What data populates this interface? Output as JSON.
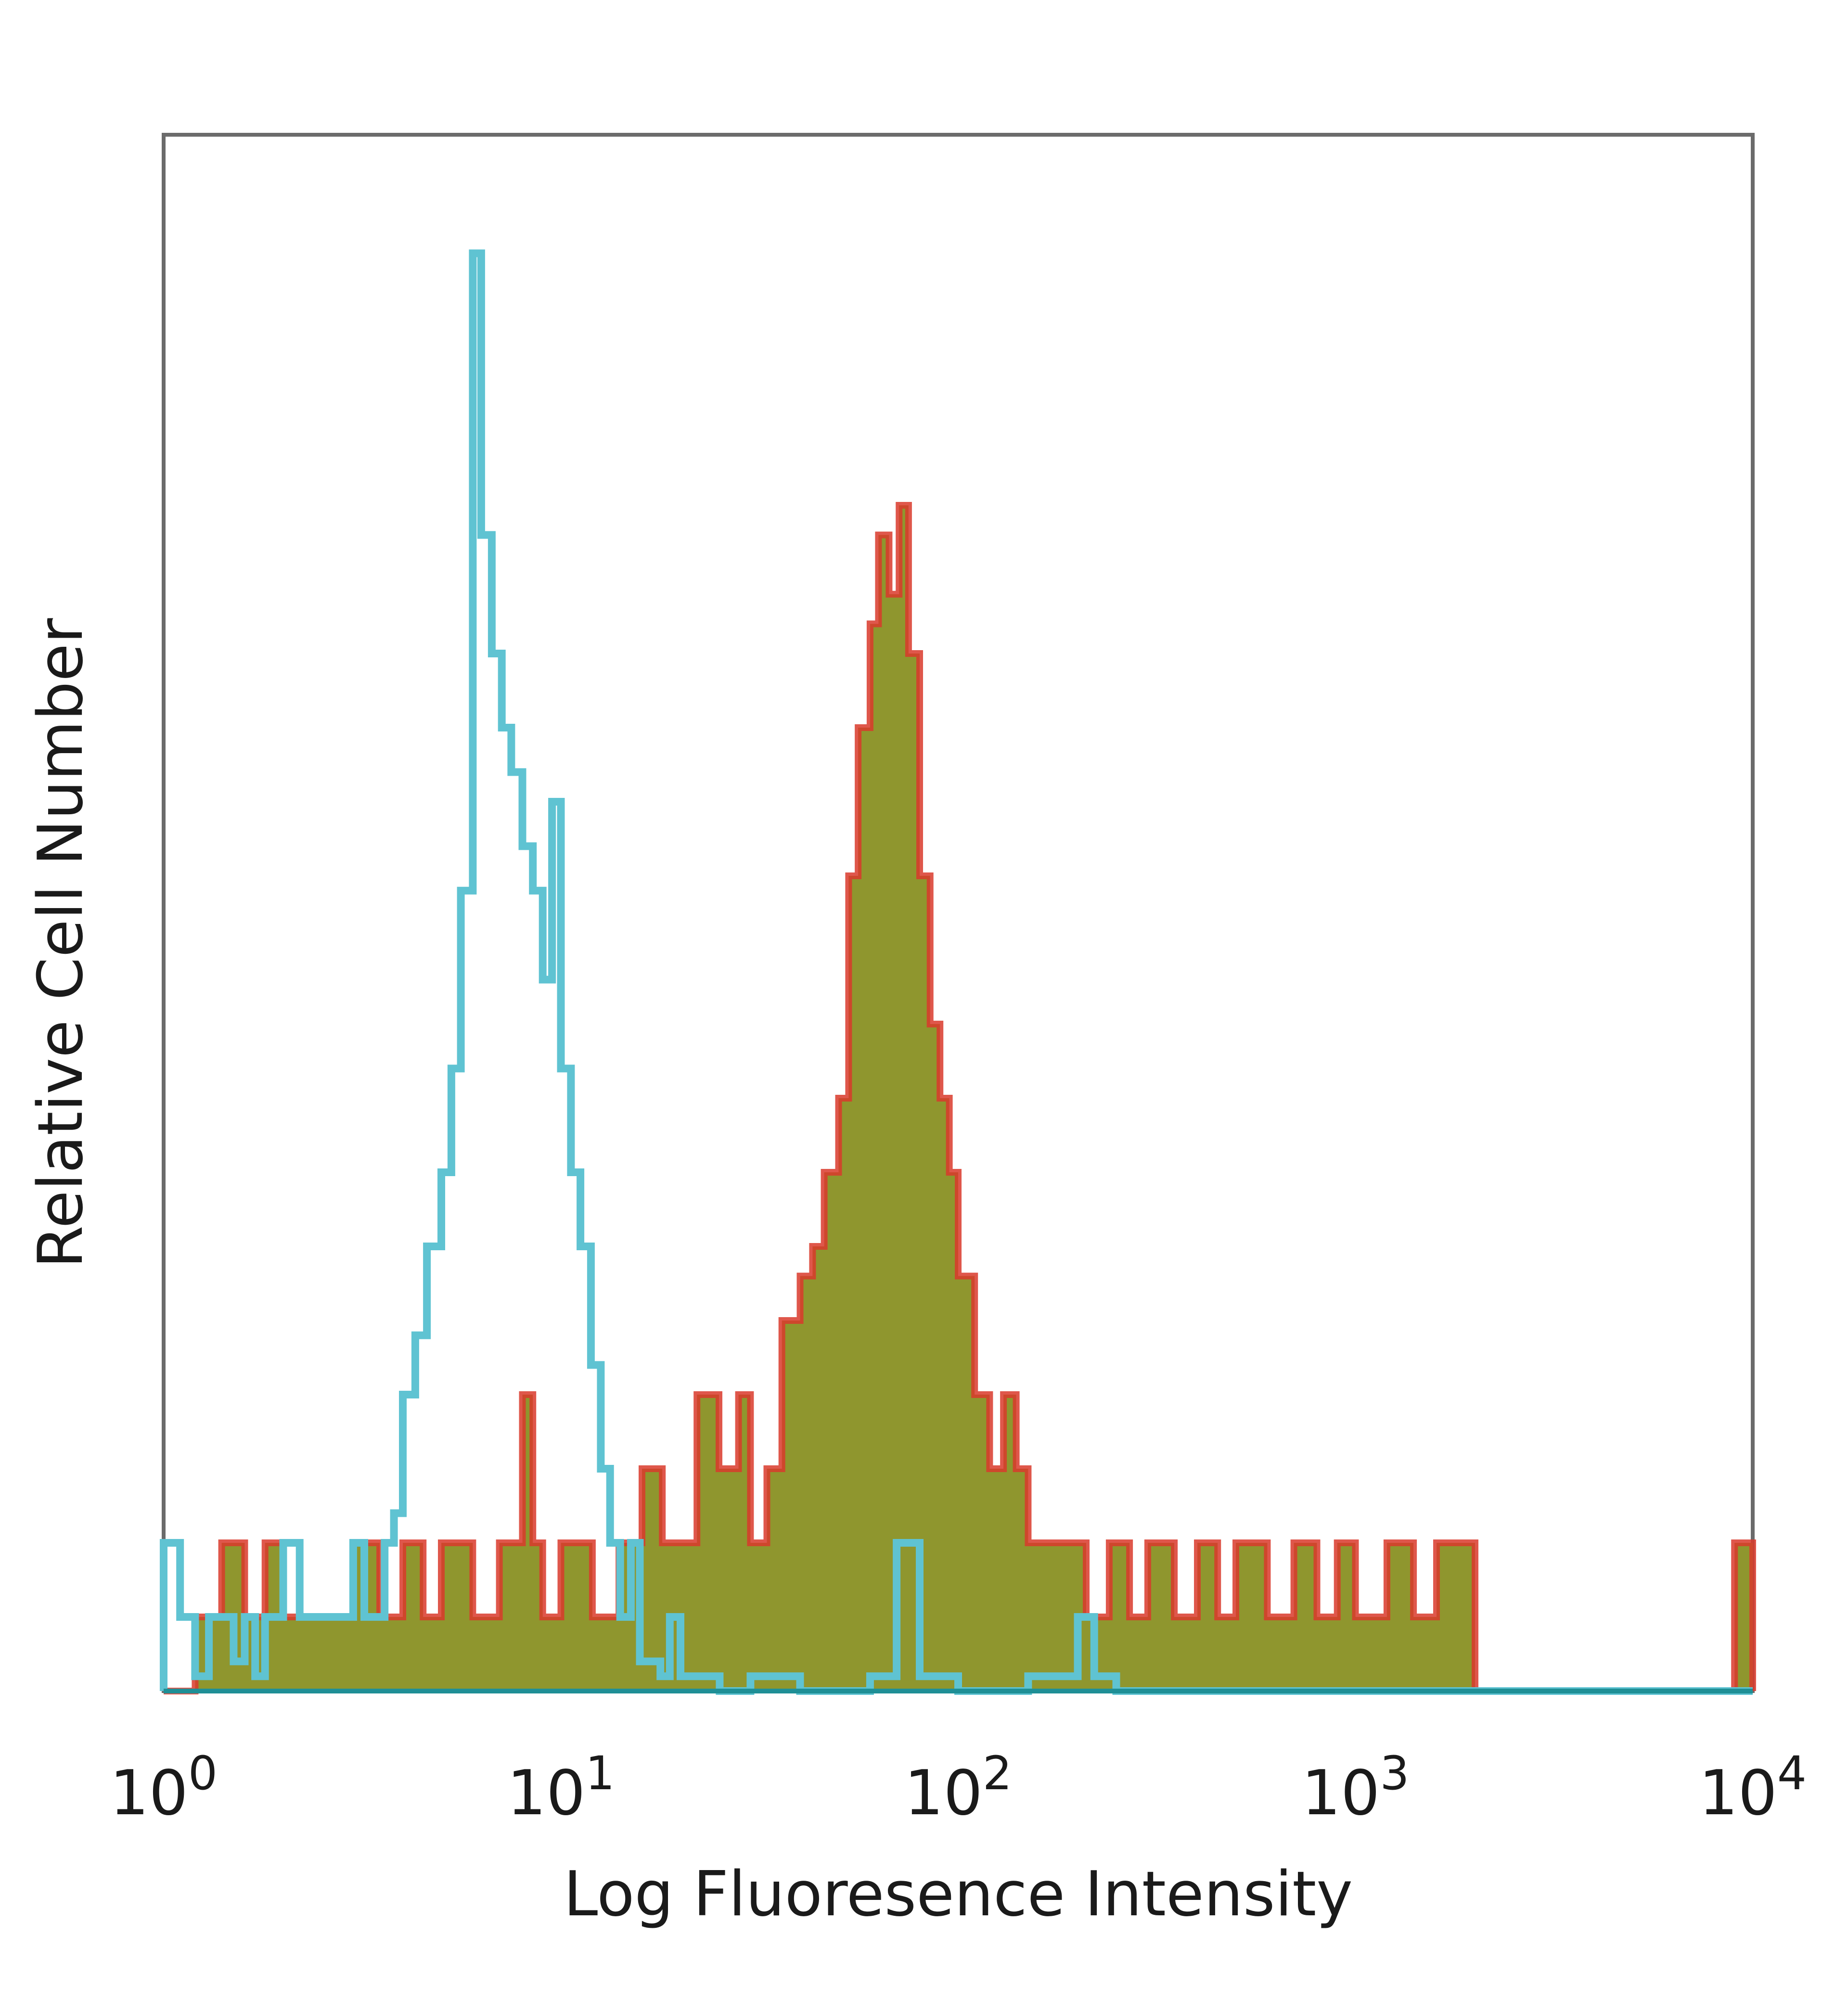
{
  "chart_data": {
    "type": "histogram",
    "xlabel": "Log Fluoresence Intensity",
    "ylabel": "Relative Cell Number",
    "x_scale": "log",
    "xlim": [
      1,
      10000
    ],
    "ylim": [
      0,
      105
    ],
    "x_ticks": [
      {
        "value": 1,
        "base": "10",
        "exp": "0"
      },
      {
        "value": 10,
        "base": "10",
        "exp": "1"
      },
      {
        "value": 100,
        "base": "10",
        "exp": "2"
      },
      {
        "value": 1000,
        "base": "10",
        "exp": "3"
      },
      {
        "value": 10000,
        "base": "10",
        "exp": "4"
      }
    ],
    "grid": false,
    "series": [
      {
        "style": "outline",
        "color": "#5fc3d2",
        "x": [
          1.0,
          1.1,
          1.2,
          1.3,
          1.4,
          1.5,
          1.6,
          1.7,
          1.8,
          1.9,
          2.0,
          2.2,
          2.4,
          2.6,
          2.8,
          3.0,
          3.2,
          3.4,
          3.6,
          3.8,
          4.0,
          4.3,
          4.6,
          5.0,
          5.3,
          5.6,
          6.0,
          6.3,
          6.7,
          7.1,
          7.5,
          8.0,
          8.5,
          9.0,
          9.5,
          10.0,
          10.6,
          11.2,
          11.9,
          12.6,
          13.3,
          14.1,
          15.0,
          15.8,
          16.8,
          17.8,
          18.8,
          20.0,
          22.4,
          25.1,
          30.0,
          40.0,
          60.0,
          70.0,
          80.0,
          100.0,
          150.0,
          200.0,
          220.0,
          250.0,
          400.0,
          1000.0,
          5000.0,
          10000.0
        ],
        "y": [
          10,
          5,
          1,
          5,
          5,
          2,
          5,
          1,
          5,
          5,
          10,
          5,
          5,
          5,
          5,
          10,
          5,
          5,
          10,
          12,
          20,
          24,
          30,
          35,
          42,
          54,
          97,
          78,
          70,
          65,
          62,
          57,
          54,
          48,
          60,
          42,
          35,
          30,
          22,
          15,
          10,
          5,
          10,
          2,
          2,
          1,
          5,
          1,
          1,
          0,
          1,
          0,
          1,
          10,
          1,
          0,
          1,
          5,
          1,
          0,
          0,
          0,
          0,
          0
        ]
      },
      {
        "style": "filled",
        "color": "#d93a2b",
        "x": [
          1.0,
          1.2,
          1.4,
          1.6,
          1.8,
          2.0,
          2.5,
          3.0,
          3.5,
          4.0,
          4.5,
          5.0,
          6.0,
          7.0,
          8.0,
          8.5,
          9.0,
          10.0,
          12.0,
          14.0,
          16.0,
          18.0,
          20.0,
          22.0,
          25.0,
          28.0,
          30.0,
          33.0,
          36.0,
          40.0,
          43.0,
          46.0,
          50.0,
          53.0,
          56.0,
          60.0,
          63.0,
          67.0,
          71.0,
          75.0,
          80.0,
          85.0,
          90.0,
          95.0,
          100.0,
          110.0,
          120.0,
          130.0,
          140.0,
          150.0,
          170.0,
          190.0,
          210.0,
          240.0,
          270.0,
          300.0,
          350.0,
          400.0,
          450.0,
          500.0,
          600.0,
          700.0,
          800.0,
          900.0,
          1000.0,
          1200.0,
          1400.0,
          1600.0,
          2000.0,
          5000.0,
          9000.0,
          10000.0
        ],
        "y": [
          0,
          5,
          10,
          5,
          10,
          5,
          5,
          10,
          5,
          10,
          5,
          10,
          5,
          10,
          20,
          10,
          5,
          10,
          5,
          10,
          15,
          10,
          10,
          20,
          15,
          20,
          10,
          15,
          25,
          28,
          30,
          35,
          40,
          55,
          65,
          72,
          78,
          74,
          80,
          70,
          55,
          45,
          40,
          35,
          28,
          20,
          15,
          20,
          15,
          10,
          10,
          10,
          5,
          10,
          5,
          10,
          5,
          10,
          5,
          10,
          5,
          10,
          5,
          10,
          5,
          10,
          5,
          10,
          0,
          0,
          10,
          10
        ]
      }
    ]
  }
}
